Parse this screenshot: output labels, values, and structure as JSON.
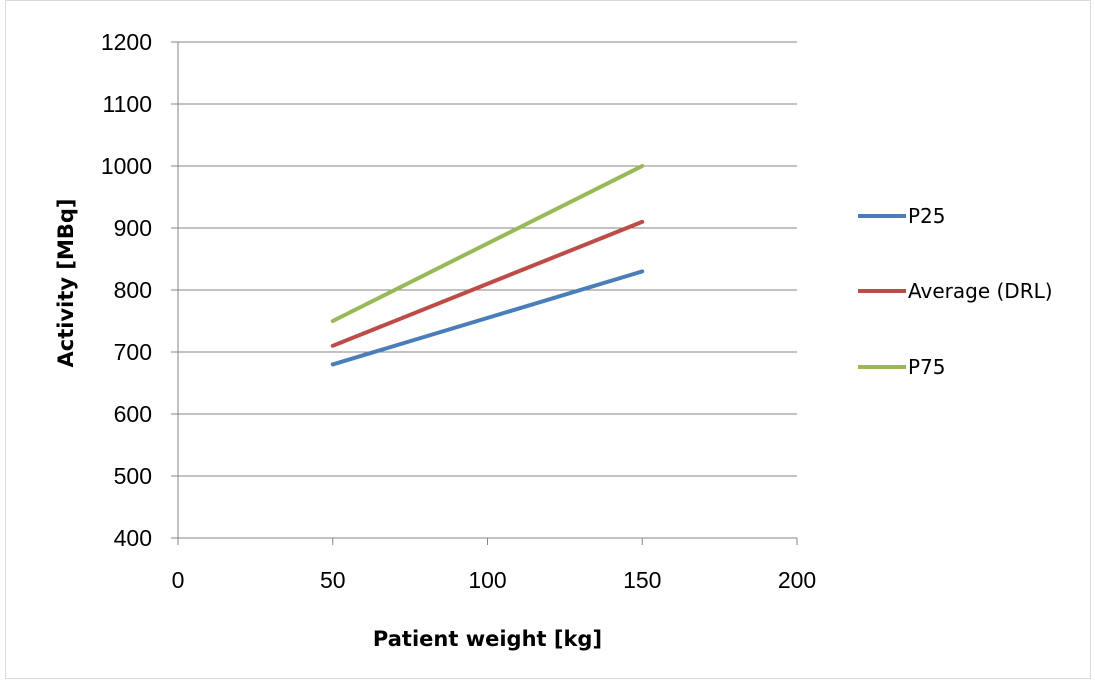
{
  "chart_data": {
    "type": "line",
    "title": "",
    "xlabel": "Patient weight [kg]",
    "ylabel": "Activity  [MBq]",
    "xlim": [
      0,
      200
    ],
    "ylim": [
      400,
      1200
    ],
    "x_ticks": [
      0,
      50,
      100,
      150,
      200
    ],
    "y_ticks": [
      400,
      500,
      600,
      700,
      800,
      900,
      1000,
      1100,
      1200
    ],
    "grid": "horizontal",
    "legend_position": "right",
    "x": [
      50,
      150
    ],
    "series": [
      {
        "name": "P25",
        "color": "#4a7ebb",
        "values": [
          680,
          830
        ]
      },
      {
        "name": "Average (DRL)",
        "color": "#be4b48",
        "values": [
          710,
          910
        ]
      },
      {
        "name": "P75",
        "color": "#98b954",
        "values": [
          750,
          1000
        ]
      }
    ]
  }
}
